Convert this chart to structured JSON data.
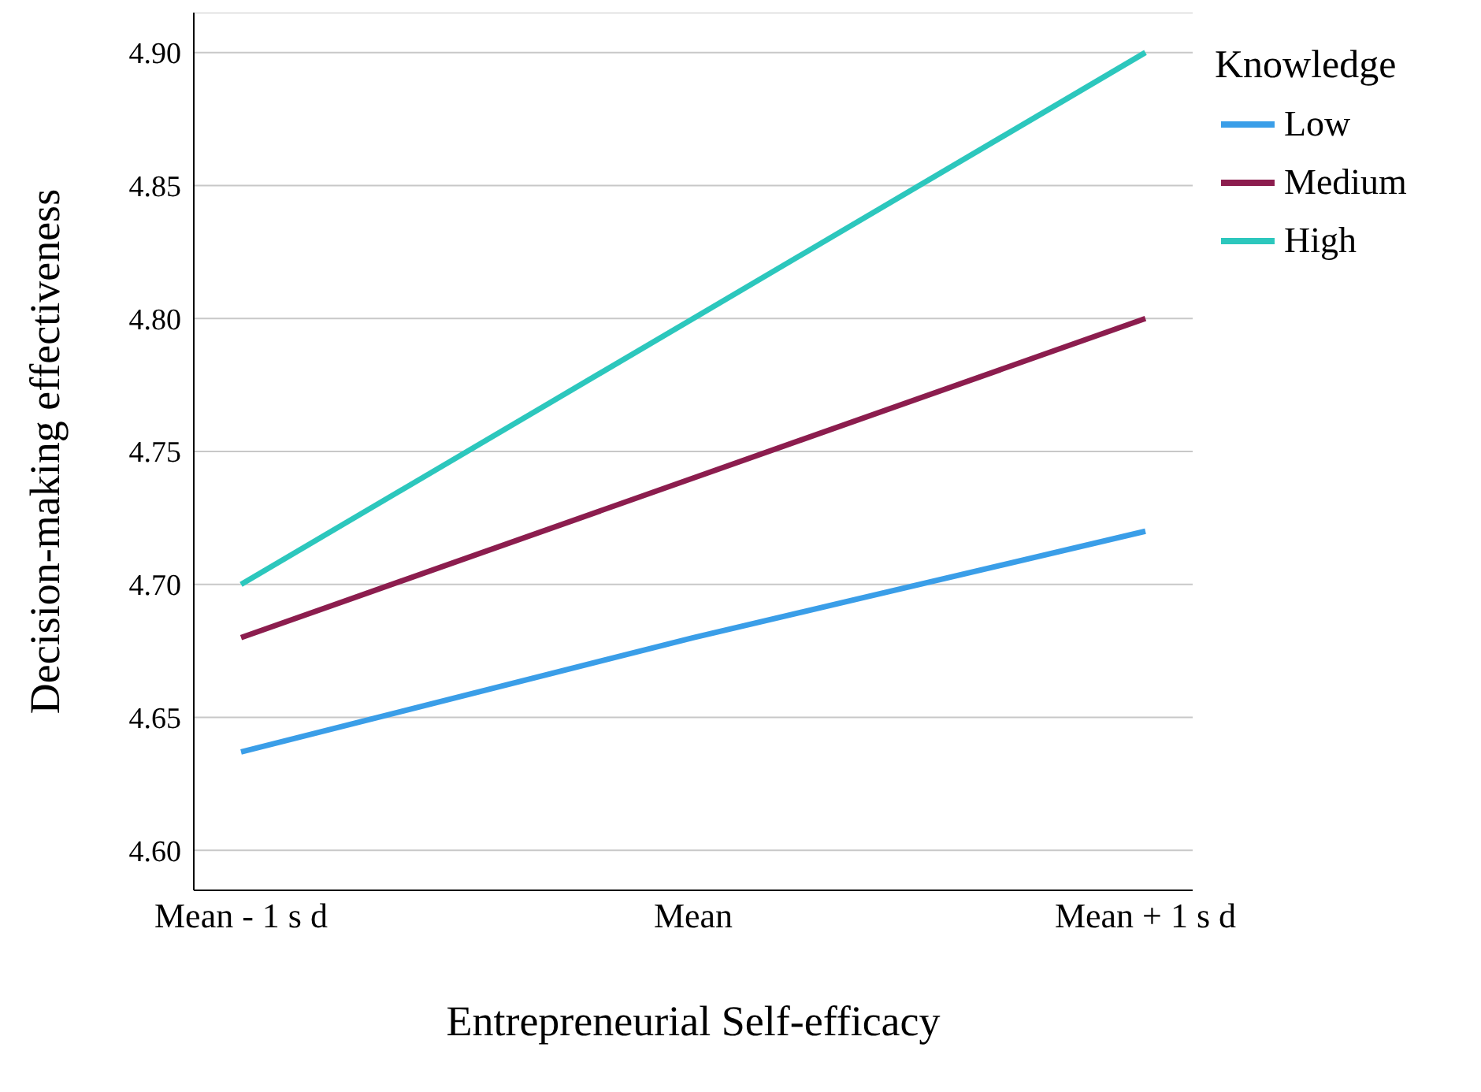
{
  "chart_data": {
    "type": "line",
    "xlabel": "Entrepreneurial Self-efficacy",
    "ylabel": "Decision-making effectiveness",
    "legend_title": "Knowledge",
    "categories": [
      "Mean - 1 s d",
      "Mean",
      "Mean + 1 s d"
    ],
    "series": [
      {
        "name": "Low",
        "color": "#3a9ee8",
        "values": [
          4.637,
          4.68,
          4.72
        ]
      },
      {
        "name": "Medium",
        "color": "#8c1d4e",
        "values": [
          4.68,
          4.74,
          4.8
        ]
      },
      {
        "name": "High",
        "color": "#2cc7bd",
        "values": [
          4.7,
          4.8,
          4.9
        ]
      }
    ],
    "ylim": [
      4.585,
      4.915
    ],
    "yticks": [
      {
        "value": 4.6,
        "label": "4.60"
      },
      4.65,
      {
        "value": 4.7,
        "label": "4.70"
      },
      4.75,
      {
        "value": 4.8,
        "label": "4.80"
      },
      4.85,
      {
        "value": 4.9,
        "label": "4.90"
      }
    ],
    "grid": "y",
    "legend": "top right",
    "marker": "none",
    "line_style": "solid"
  }
}
